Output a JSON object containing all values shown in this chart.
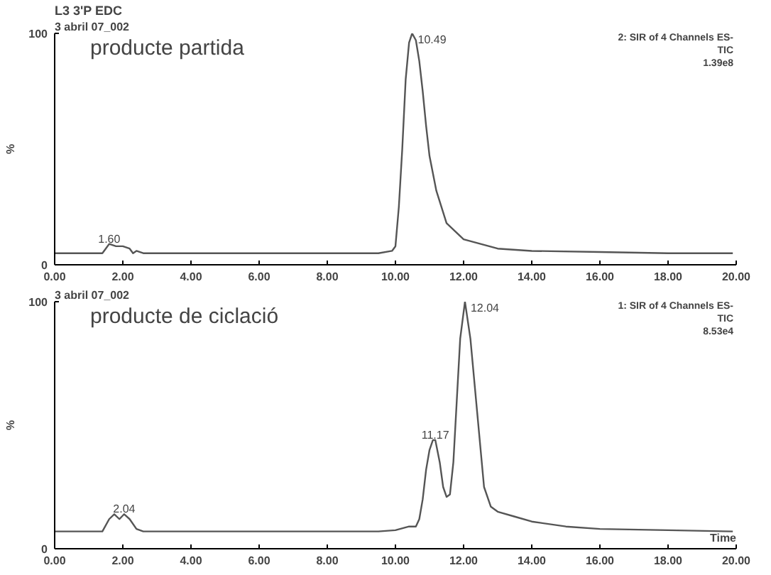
{
  "chart_data": [
    {
      "type": "line",
      "title": "L3 3'P EDC",
      "subtitle": "3 abril 07_002",
      "ylabel": "%",
      "annotations": [
        "producte partida",
        "2: SIR of 4 Channels ES-",
        "TIC",
        "1.39e8",
        {
          "text": "1.60",
          "x": 1.6,
          "y": 9
        },
        {
          "text": "10.49",
          "x": 10.49,
          "y": 100
        }
      ],
      "series": [
        {
          "color": "#555555",
          "x": [
            0,
            1.4,
            1.5,
            1.6,
            1.8,
            2.0,
            2.2,
            2.3,
            2.4,
            2.6,
            4,
            6,
            8,
            9.5,
            9.9,
            10.0,
            10.1,
            10.2,
            10.3,
            10.4,
            10.49,
            10.6,
            10.7,
            10.8,
            10.9,
            11.0,
            11.2,
            11.5,
            12,
            13,
            14,
            16,
            18,
            19.9
          ],
          "values": [
            5,
            5,
            7,
            9,
            8,
            8,
            7,
            5,
            6,
            5,
            5,
            5,
            5,
            5,
            6,
            8,
            25,
            50,
            80,
            96,
            100,
            97,
            88,
            75,
            60,
            47,
            32,
            18,
            11,
            7,
            6,
            5.5,
            5,
            5
          ]
        }
      ],
      "xlim": [
        0,
        20
      ],
      "ylim": [
        0,
        100
      ],
      "xticks": [
        {
          "value": 0,
          "label": "0.00"
        },
        {
          "value": 2,
          "label": "2.00"
        },
        {
          "value": 4,
          "label": "4.00"
        },
        {
          "value": 6,
          "label": "6.00"
        },
        {
          "value": 8,
          "label": "8.00"
        },
        {
          "value": 10,
          "label": "10.00"
        },
        {
          "value": 12,
          "label": "12.00"
        },
        {
          "value": 14,
          "label": "14.00"
        },
        {
          "value": 16,
          "label": "16.00"
        },
        {
          "value": 18,
          "label": "18.00"
        },
        {
          "value": 20,
          "label": "20.00"
        }
      ],
      "yticks": [
        0,
        100
      ],
      "grid": false,
      "line_style": "solid"
    },
    {
      "type": "line",
      "subtitle": "3 abril 07_002",
      "ylabel": "%",
      "xlabel": "Time",
      "annotations": [
        "producte de ciclació",
        "1: SIR of 4 Channels ES-",
        "TIC",
        "8.53e4",
        {
          "text": "2.04",
          "x": 2.04,
          "y": 14
        },
        {
          "text": "11.17",
          "x": 11.17,
          "y": 44
        },
        {
          "text": "12.04",
          "x": 12.04,
          "y": 100
        }
      ],
      "series": [
        {
          "color": "#555555",
          "x": [
            0,
            1.4,
            1.6,
            1.75,
            1.9,
            2.04,
            2.2,
            2.4,
            2.6,
            4,
            6,
            8,
            9.5,
            10.0,
            10.4,
            10.6,
            10.7,
            10.8,
            10.9,
            11.0,
            11.1,
            11.17,
            11.3,
            11.4,
            11.5,
            11.6,
            11.7,
            11.8,
            11.9,
            12.04,
            12.2,
            12.4,
            12.6,
            12.8,
            13,
            13.5,
            14,
            15,
            16,
            18,
            19.9
          ],
          "values": [
            7,
            7,
            12,
            14,
            12,
            14,
            12,
            8,
            7,
            7,
            7,
            7,
            7,
            7.5,
            9,
            9,
            12,
            20,
            32,
            40,
            44,
            44,
            35,
            25,
            21,
            22,
            35,
            60,
            85,
            100,
            85,
            55,
            25,
            17,
            15,
            13,
            11,
            9,
            8,
            7.5,
            7
          ]
        }
      ],
      "xlim": [
        0,
        20
      ],
      "ylim": [
        0,
        100
      ],
      "xticks": [
        {
          "value": 0,
          "label": "0.00"
        },
        {
          "value": 2,
          "label": "2.00"
        },
        {
          "value": 4,
          "label": "4.00"
        },
        {
          "value": 6,
          "label": "6.00"
        },
        {
          "value": 8,
          "label": "8.00"
        },
        {
          "value": 10,
          "label": "10.00"
        },
        {
          "value": 12,
          "label": "12.00"
        },
        {
          "value": 14,
          "label": "14.00"
        },
        {
          "value": 16,
          "label": "16.00"
        },
        {
          "value": 18,
          "label": "18.00"
        },
        {
          "value": 20,
          "label": "20.00"
        }
      ],
      "yticks": [
        0,
        100
      ],
      "grid": false,
      "line_style": "solid"
    }
  ]
}
